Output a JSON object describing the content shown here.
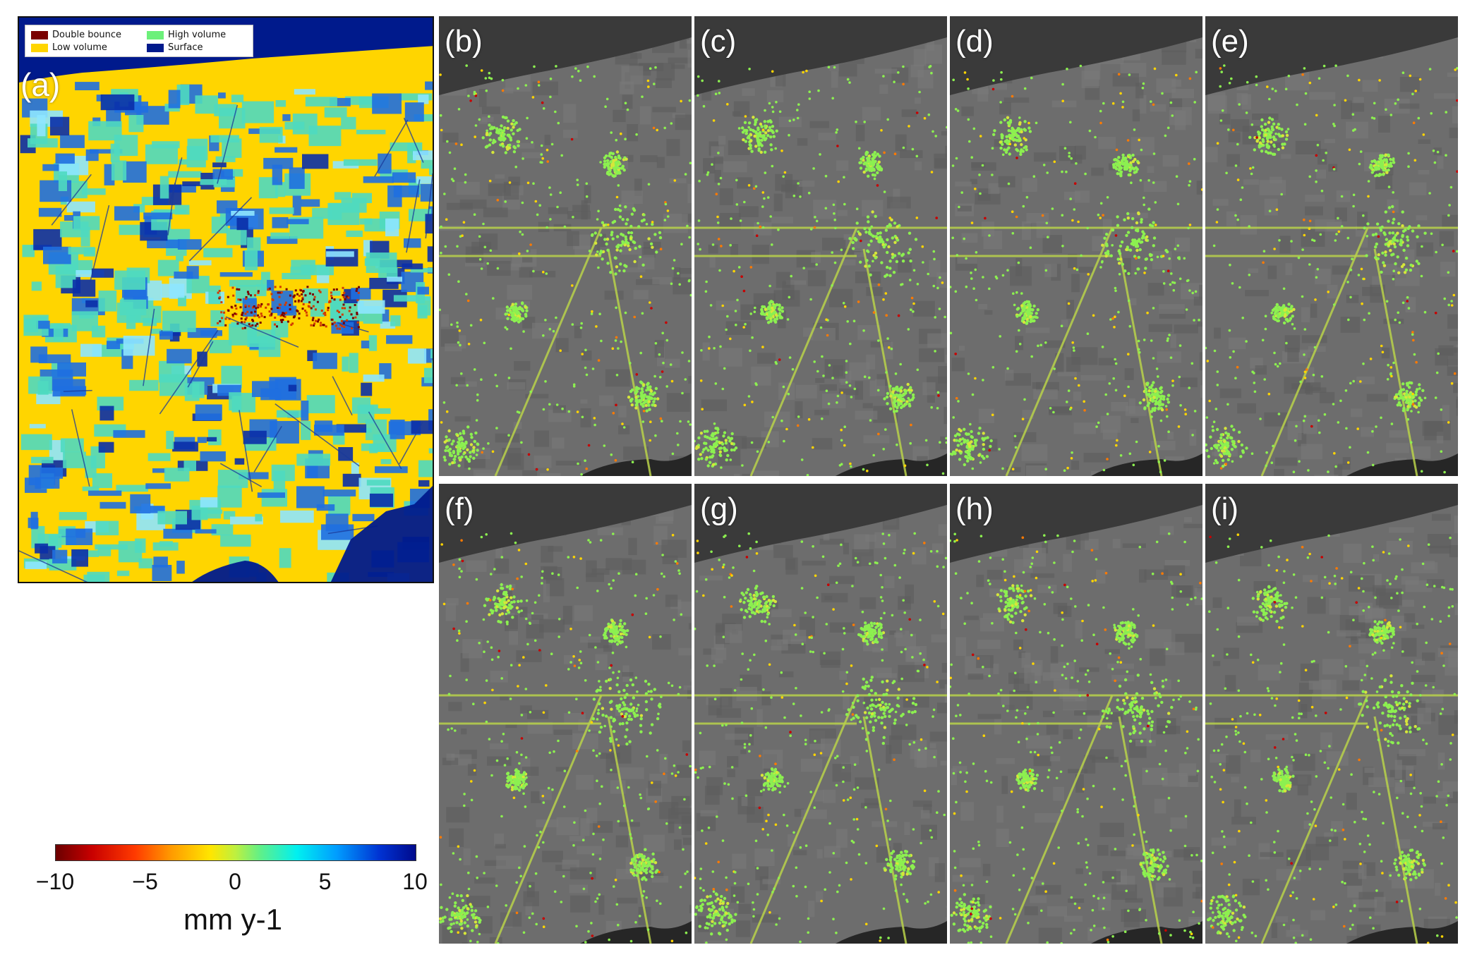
{
  "legend": {
    "items": [
      {
        "label": "Double bounce",
        "color": "#7a0000"
      },
      {
        "label": "High volume",
        "color": "#6cf07a"
      },
      {
        "label": "Low volume",
        "color": "#ffd500"
      },
      {
        "label": "Surface",
        "color": "#001a8c"
      }
    ]
  },
  "panels": [
    {
      "label": "(a)"
    },
    {
      "label": "(b)"
    },
    {
      "label": "(c)"
    },
    {
      "label": "(d)"
    },
    {
      "label": "(e)"
    },
    {
      "label": "(f)"
    },
    {
      "label": "(g)"
    },
    {
      "label": "(h)"
    },
    {
      "label": "(i)"
    }
  ],
  "colorbar": {
    "ticks": [
      "−10",
      "−5",
      "0",
      "5",
      "10"
    ],
    "tick_values": [
      -10,
      -5,
      0,
      5,
      10
    ],
    "range": [
      -10,
      10
    ],
    "unit": "mm y-1",
    "colormap": [
      "#6b0000",
      "#ff3a00",
      "#ffe600",
      "#5ef08a",
      "#00f0f0",
      "#0032d2",
      "#000a8c"
    ]
  },
  "colors": {
    "water": "#001a8c",
    "land_low_volume": "#ffd500",
    "land_high_volume": "#55e7a8",
    "basemap_dark": "#3a3a3a",
    "basemap_land": "#6d6d6d",
    "points_stable": "#8cf050",
    "points_subsiding": "#ff7a00"
  }
}
